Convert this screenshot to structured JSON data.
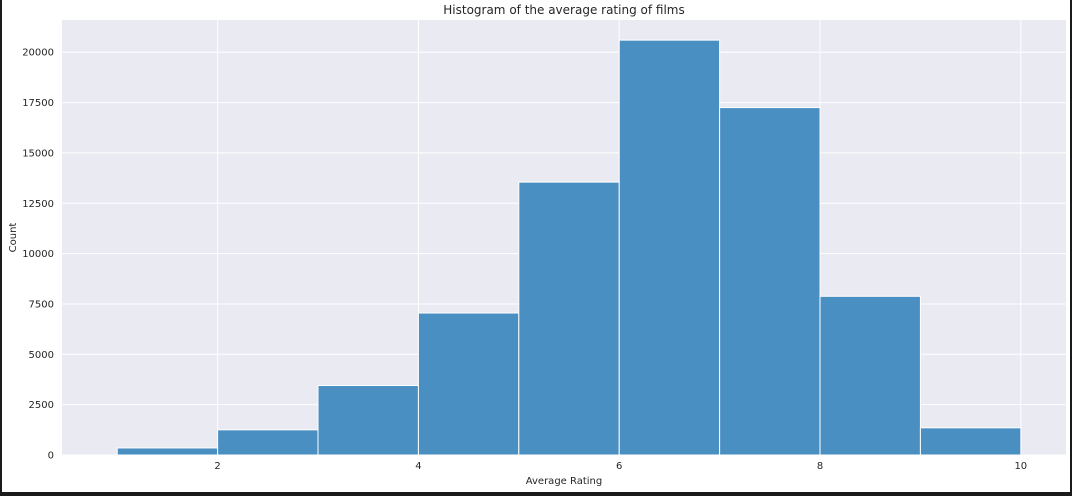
{
  "chart_data": {
    "type": "bar",
    "subtype": "histogram",
    "title": "Histogram of the average rating of films",
    "xlabel": "Average Rating",
    "ylabel": "Count",
    "bin_edges": [
      1,
      2,
      3,
      4,
      5,
      6,
      7,
      8,
      9,
      10
    ],
    "values": [
      350,
      1250,
      3450,
      7050,
      13550,
      20600,
      17250,
      7880,
      1350
    ],
    "xlim": [
      0.45,
      10.45
    ],
    "ylim": [
      0,
      21600
    ],
    "x_ticks": [
      2,
      4,
      6,
      8,
      10
    ],
    "y_ticks": [
      0,
      2500,
      5000,
      7500,
      10000,
      12500,
      15000,
      17500,
      20000
    ],
    "grid": true,
    "bar_color": "#4a8fc2",
    "background_color": "#eaeaf2",
    "grid_color": "#ffffff"
  }
}
